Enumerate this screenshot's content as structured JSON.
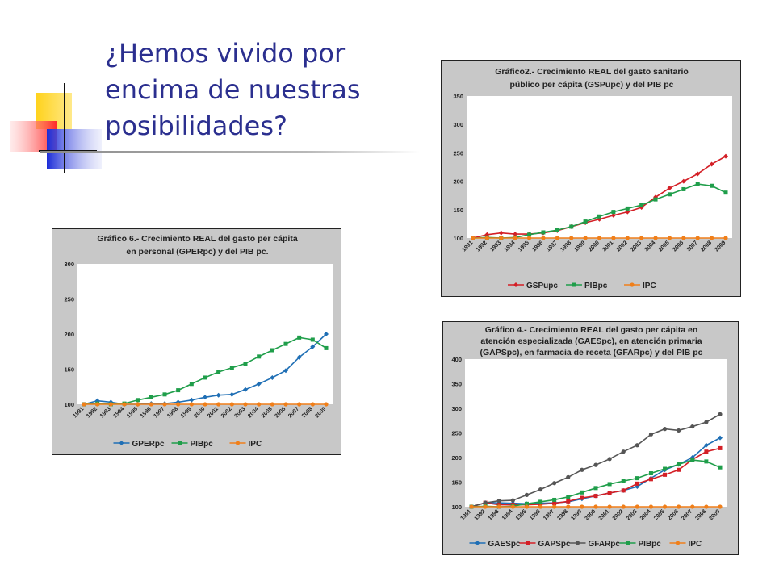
{
  "slide": {
    "title": "¿Hemos vivido por encima de nuestras posibilidades?",
    "title_lines": [
      "¿Hemos vivido por",
      "encima de nuestras",
      "posibilidades?"
    ]
  },
  "colors": {
    "title": "#2b2f8f",
    "chart_bg": "#c8c8c8",
    "plot_bg": "#ffffff"
  },
  "chart_data": [
    {
      "id": "grafico2",
      "type": "line",
      "title_lines": [
        "Gráfico2.- Crecimiento REAL del gasto sanitario",
        "público per cápita (GSPupc) y del PIB pc"
      ],
      "categories": [
        "1991",
        "1992",
        "1993",
        "1994",
        "1995",
        "1996",
        "1997",
        "1998",
        "1999",
        "2000",
        "2001",
        "2002",
        "2003",
        "2004",
        "2005",
        "2006",
        "2007",
        "2008",
        "2009"
      ],
      "ylim": [
        100,
        350
      ],
      "yticks": [
        100,
        150,
        200,
        250,
        300,
        350
      ],
      "grid": false,
      "legend": "bottom",
      "series": [
        {
          "name": "GSPupc",
          "color": "#d41f26",
          "marker": "diamond",
          "values": [
            100,
            106,
            109,
            107,
            107,
            109,
            113,
            120,
            127,
            133,
            140,
            146,
            154,
            172,
            188,
            200,
            213,
            230,
            244
          ]
        },
        {
          "name": "PIBpc",
          "color": "#1f9e4a",
          "marker": "square",
          "values": [
            100,
            101,
            100,
            101,
            106,
            110,
            114,
            120,
            129,
            138,
            146,
            152,
            158,
            168,
            177,
            186,
            195,
            192,
            180
          ]
        },
        {
          "name": "IPC",
          "color": "#f07f1a",
          "marker": "circle",
          "values": [
            100,
            100,
            100,
            100,
            100,
            100,
            100,
            100,
            100,
            100,
            100,
            100,
            100,
            100,
            100,
            100,
            100,
            100,
            100
          ]
        }
      ]
    },
    {
      "id": "grafico6",
      "type": "line",
      "title_lines": [
        "Gráfico 6.- Crecimiento REAL del gasto per cápita",
        "en personal (GPERpc) y del PIB pc."
      ],
      "categories": [
        "1991",
        "1992",
        "1993",
        "1994",
        "1995",
        "1996",
        "1997",
        "1998",
        "1999",
        "2000",
        "2001",
        "2002",
        "2003",
        "2004",
        "2005",
        "2006",
        "2007",
        "2008",
        "2009"
      ],
      "ylim": [
        100,
        300
      ],
      "yticks": [
        100,
        150,
        200,
        250,
        300
      ],
      "grid": false,
      "legend": "bottom",
      "series": [
        {
          "name": "GPERpc",
          "color": "#1f6fb5",
          "marker": "diamond",
          "values": [
            100,
            105,
            103,
            100,
            100,
            101,
            101,
            103,
            106,
            110,
            113,
            114,
            121,
            129,
            138,
            148,
            167,
            182,
            200
          ]
        },
        {
          "name": "PIBpc",
          "color": "#1f9e4a",
          "marker": "square",
          "values": [
            100,
            101,
            100,
            101,
            106,
            110,
            114,
            120,
            129,
            138,
            146,
            152,
            158,
            168,
            177,
            186,
            195,
            192,
            180
          ]
        },
        {
          "name": "IPC",
          "color": "#f07f1a",
          "marker": "circle",
          "values": [
            100,
            100,
            100,
            100,
            100,
            100,
            100,
            100,
            100,
            100,
            100,
            100,
            100,
            100,
            100,
            100,
            100,
            100,
            100
          ]
        }
      ]
    },
    {
      "id": "grafico4",
      "type": "line",
      "title_lines": [
        "Gráfico 4.- Crecimiento REAL del gasto per cápita en",
        "atención especializada (GAESpc), en atención primaria",
        "(GAPSpc), en farmacia de receta (GFARpc) y del PIB pc"
      ],
      "categories": [
        "1991",
        "1992",
        "1993",
        "1994",
        "1995",
        "1996",
        "1997",
        "1998",
        "1999",
        "2000",
        "2001",
        "2002",
        "2003",
        "2004",
        "2005",
        "2006",
        "2007",
        "2008",
        "2009"
      ],
      "ylim": [
        100,
        400
      ],
      "yticks": [
        100,
        150,
        200,
        250,
        300,
        350,
        400
      ],
      "grid": false,
      "legend": "bottom",
      "series": [
        {
          "name": "GAESpc",
          "color": "#1f6fb5",
          "marker": "diamond",
          "values": [
            100,
            108,
            108,
            107,
            106,
            107,
            108,
            110,
            116,
            122,
            128,
            133,
            141,
            158,
            175,
            186,
            200,
            225,
            240
          ]
        },
        {
          "name": "GAPSpc",
          "color": "#d41f26",
          "marker": "square",
          "values": [
            100,
            108,
            104,
            104,
            104,
            105,
            107,
            111,
            118,
            122,
            128,
            133,
            147,
            156,
            165,
            175,
            196,
            212,
            219
          ]
        },
        {
          "name": "GFARpc",
          "color": "#555555",
          "marker": "circle",
          "values": [
            100,
            108,
            112,
            113,
            124,
            135,
            148,
            160,
            175,
            185,
            197,
            212,
            225,
            247,
            258,
            255,
            263,
            272,
            288
          ]
        },
        {
          "name": "PIBpc",
          "color": "#1f9e4a",
          "marker": "square",
          "values": [
            100,
            101,
            100,
            101,
            106,
            110,
            114,
            120,
            129,
            138,
            146,
            152,
            158,
            168,
            177,
            186,
            195,
            192,
            180
          ]
        },
        {
          "name": "IPC",
          "color": "#f07f1a",
          "marker": "circle",
          "values": [
            100,
            100,
            100,
            100,
            100,
            100,
            100,
            100,
            100,
            100,
            100,
            100,
            100,
            100,
            100,
            100,
            100,
            100,
            100
          ]
        }
      ]
    }
  ]
}
